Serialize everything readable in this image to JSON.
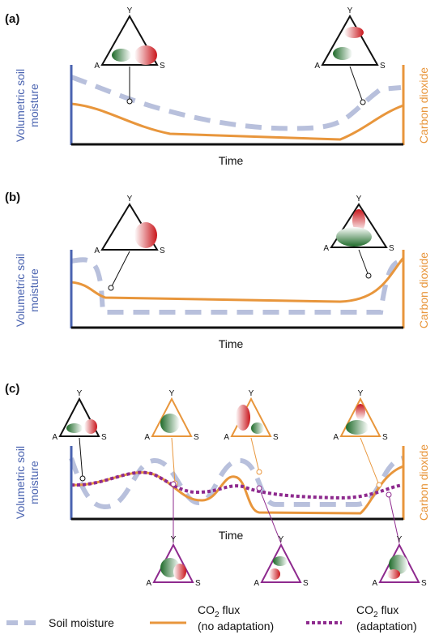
{
  "panels": [
    {
      "label": "(a)",
      "x_label": "Time",
      "y_label_left": [
        "Volumetric soil",
        "moisture"
      ],
      "y_label_right": "Carbon dioxide"
    },
    {
      "label": "(b)",
      "x_label": "Time",
      "y_label_left": [
        "Volumetric soil",
        "moisture"
      ],
      "y_label_right": "Carbon dioxide"
    },
    {
      "label": "(c)",
      "x_label": "Time",
      "y_label_left": [
        "Volumetric soil",
        "moisture"
      ],
      "y_label_right": "Carbon dioxide"
    }
  ],
  "triangle_vertices": {
    "top": "Y",
    "left": "A",
    "right": "S"
  },
  "legend": [
    {
      "text": "Soil moisture"
    },
    {
      "parts": [
        "CO",
        "2",
        " flux"
      ],
      "second_line": "(no adaptation)"
    },
    {
      "parts": [
        "CO",
        "2",
        " flux"
      ],
      "second_line": "(adaptation)"
    }
  ]
}
